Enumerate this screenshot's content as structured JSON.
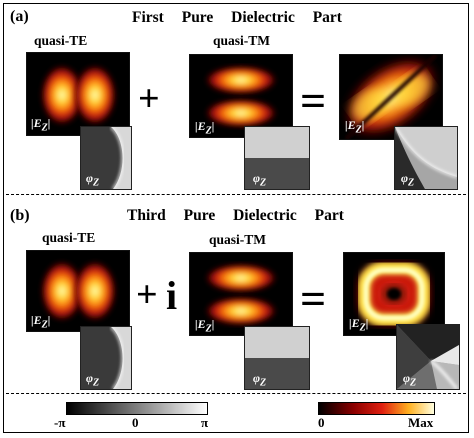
{
  "panel_a": {
    "label": "(a)",
    "title": "First Pure Dielectric Part",
    "left_mode": "quasi-TE",
    "right_mode": "quasi-TM",
    "operator_1": "+",
    "operator_2": "="
  },
  "panel_b": {
    "label": "(b)",
    "title": "Third Pure Dielectric Part",
    "left_mode": "quasi-TE",
    "right_mode": "quasi-TM",
    "operator_1": "+",
    "imag_unit": "i",
    "operator_2": "="
  },
  "field_label": "|E",
  "field_sub": "Z",
  "phase_label": "φ",
  "phase_sub": "Z",
  "phase_colorbar": {
    "min_label": "-π",
    "mid_label": "0",
    "max_label": "π"
  },
  "amp_colorbar": {
    "min_label": "0",
    "max_label": "Max"
  },
  "colors": {
    "hot_low": "#000000",
    "hot_mid": "#c81010",
    "hot_high": "#ffff70",
    "phase_low": "#000000",
    "phase_high": "#ffffff"
  }
}
